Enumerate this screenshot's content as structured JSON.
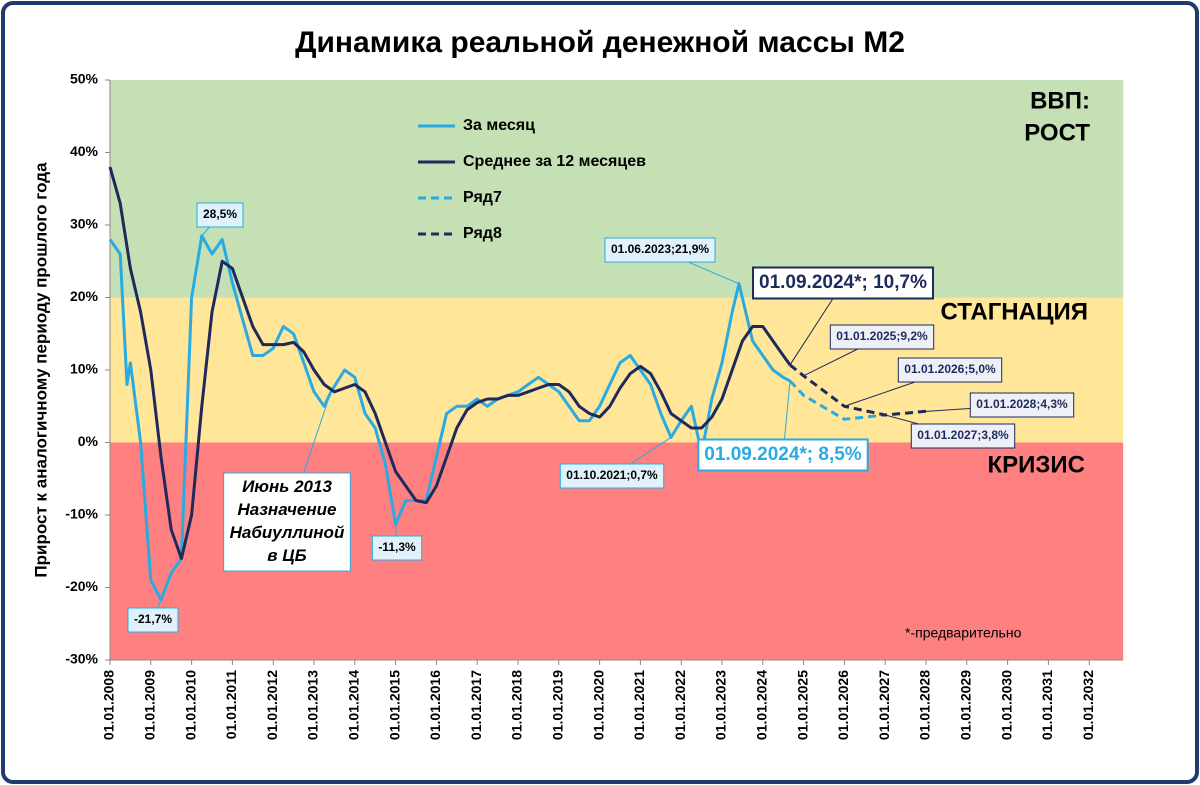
{
  "chart_data": {
    "type": "line",
    "title": "Динамика реальной денежной массы М2",
    "y_axis_label": "Прирост к аналогичному периоду прошлого года",
    "xlim": [
      "01.01.2008",
      "01.11.2032"
    ],
    "xticks": [
      "01.01.2008",
      "01.01.2009",
      "01.01.2010",
      "01.01.2011",
      "01.01.2012",
      "01.01.2013",
      "01.01.2014",
      "01.01.2015",
      "01.01.2016",
      "01.01.2017",
      "01.01.2018",
      "01.01.2019",
      "01.01.2020",
      "01.01.2021",
      "01.01.2022",
      "01.01.2023",
      "01.01.2024",
      "01.01.2025",
      "01.01.2026",
      "01.01.2027",
      "01.01.2028",
      "01.01.2029",
      "01.01.2030",
      "01.01.2031",
      "01.01.2032"
    ],
    "ylim": [
      -30,
      50
    ],
    "yticks": [
      {
        "value": -30,
        "label": "-30%"
      },
      {
        "value": -20,
        "label": "-20%"
      },
      {
        "value": -10,
        "label": "-10%"
      },
      {
        "value": 0,
        "label": "0%"
      },
      {
        "value": 10,
        "label": "10%"
      },
      {
        "value": 20,
        "label": "20%"
      },
      {
        "value": 30,
        "label": "30%"
      },
      {
        "value": 40,
        "label": "40%"
      },
      {
        "value": 50,
        "label": "50%"
      }
    ],
    "bands": [
      {
        "from": 20,
        "to": 50,
        "color": "#c5e0b4"
      },
      {
        "from": 0,
        "to": 20,
        "color": "#ffe699"
      },
      {
        "from": -30,
        "to": 0,
        "color": "#ff8080"
      }
    ],
    "zone_labels": [
      "ВВП:",
      "РОСТ",
      "СТАГНАЦИЯ",
      "КРИЗИС"
    ],
    "series": [
      {
        "name": "За месяц",
        "color": "#29abe2",
        "dash": false,
        "x": [
          "01.01.2008",
          "01.04.2008",
          "01.06.2008",
          "01.07.2008",
          "01.10.2008",
          "01.01.2009",
          "01.04.2009",
          "01.07.2009",
          "01.10.2009",
          "01.01.2010",
          "01.04.2010",
          "01.07.2010",
          "01.10.2010",
          "01.01.2011",
          "01.04.2011",
          "01.07.2011",
          "01.10.2011",
          "01.01.2012",
          "01.04.2012",
          "01.07.2012",
          "01.10.2012",
          "01.01.2013",
          "01.04.2013",
          "01.06.2013",
          "01.10.2013",
          "01.01.2014",
          "01.04.2014",
          "01.07.2014",
          "01.10.2014",
          "01.01.2015",
          "01.04.2015",
          "01.07.2015",
          "01.10.2015",
          "01.01.2016",
          "01.04.2016",
          "01.07.2016",
          "01.10.2016",
          "01.01.2017",
          "01.04.2017",
          "01.07.2017",
          "01.10.2017",
          "01.01.2018",
          "01.04.2018",
          "01.07.2018",
          "01.10.2018",
          "01.01.2019",
          "01.04.2019",
          "01.07.2019",
          "01.10.2019",
          "01.01.2020",
          "01.04.2020",
          "01.07.2020",
          "01.10.2020",
          "01.01.2021",
          "01.04.2021",
          "01.07.2021",
          "01.10.2021",
          "01.01.2022",
          "01.04.2022",
          "01.07.2022",
          "01.10.2022",
          "01.01.2023",
          "01.04.2023",
          "01.06.2023",
          "01.10.2023",
          "01.01.2024",
          "01.04.2024",
          "01.07.2024",
          "01.09.2024"
        ],
        "values": [
          28,
          26,
          8,
          11,
          0,
          -19,
          -21.7,
          -18,
          -16,
          20,
          28.5,
          26,
          28,
          22,
          17,
          12,
          12,
          13,
          16,
          15,
          11,
          7,
          5,
          7,
          10,
          9,
          4,
          2,
          -3,
          -11.3,
          -8,
          -8,
          -8,
          -2,
          4,
          5,
          5,
          6,
          5,
          6,
          6.5,
          7,
          8,
          9,
          8,
          7,
          5,
          3,
          3,
          5,
          8,
          11,
          12,
          10,
          8,
          4,
          0.7,
          3,
          5,
          -1.5,
          6,
          11,
          18,
          21.9,
          14,
          12,
          10,
          9,
          8.5
        ]
      },
      {
        "name": "Среднее за 12 месяцев",
        "color": "#1f2a5c",
        "dash": false,
        "x": [
          "01.01.2008",
          "01.04.2008",
          "01.07.2008",
          "01.10.2008",
          "01.01.2009",
          "01.04.2009",
          "01.07.2009",
          "01.10.2009",
          "01.01.2010",
          "01.04.2010",
          "01.07.2010",
          "01.10.2010",
          "01.01.2011",
          "01.04.2011",
          "01.07.2011",
          "01.10.2011",
          "01.01.2012",
          "01.04.2012",
          "01.07.2012",
          "01.10.2012",
          "01.01.2013",
          "01.04.2013",
          "01.07.2013",
          "01.10.2013",
          "01.01.2014",
          "01.04.2014",
          "01.07.2014",
          "01.10.2014",
          "01.01.2015",
          "01.04.2015",
          "01.07.2015",
          "01.10.2015",
          "01.01.2016",
          "01.04.2016",
          "01.07.2016",
          "01.10.2016",
          "01.01.2017",
          "01.04.2017",
          "01.07.2017",
          "01.10.2017",
          "01.01.2018",
          "01.04.2018",
          "01.07.2018",
          "01.10.2018",
          "01.01.2019",
          "01.04.2019",
          "01.07.2019",
          "01.10.2019",
          "01.01.2020",
          "01.04.2020",
          "01.07.2020",
          "01.10.2020",
          "01.01.2021",
          "01.04.2021",
          "01.07.2021",
          "01.10.2021",
          "01.01.2022",
          "01.04.2022",
          "01.07.2022",
          "01.10.2022",
          "01.01.2023",
          "01.04.2023",
          "01.07.2023",
          "01.10.2023",
          "01.01.2024",
          "01.04.2024",
          "01.07.2024",
          "01.09.2024"
        ],
        "values": [
          38,
          33,
          24,
          18,
          10,
          -2,
          -12,
          -16,
          -10,
          5,
          18,
          25,
          24,
          20,
          16,
          13.5,
          13.5,
          13.5,
          13.8,
          12.5,
          10,
          8,
          7,
          7.5,
          8,
          7,
          4,
          0,
          -4,
          -6,
          -8,
          -8.3,
          -6,
          -2,
          2,
          4.5,
          5.5,
          6,
          6,
          6.5,
          6.5,
          7,
          7.5,
          8,
          8,
          7,
          5,
          4,
          3.5,
          5,
          7.5,
          9.5,
          10.5,
          9.5,
          7,
          4,
          3,
          2,
          2,
          3.5,
          6,
          10,
          14,
          16,
          16,
          14,
          12,
          10.7
        ]
      },
      {
        "name": "Ряд7",
        "color": "#29abe2",
        "dash": true,
        "x": [
          "01.09.2024",
          "01.01.2025",
          "01.01.2026",
          "01.01.2027"
        ],
        "values": [
          8.5,
          6.5,
          3.2,
          3.8
        ]
      },
      {
        "name": "Ряд8",
        "color": "#1f2a5c",
        "dash": true,
        "x": [
          "01.09.2024",
          "01.01.2025",
          "01.01.2026",
          "01.01.2027",
          "01.01.2028"
        ],
        "values": [
          10.7,
          9.2,
          5.0,
          3.8,
          4.3
        ]
      }
    ],
    "annotations": [
      {
        "text": [
          "28,5%"
        ],
        "x": "01.04.2010",
        "y": 28.5,
        "color": "#29abe2"
      },
      {
        "text": [
          "-21,7%"
        ],
        "x": "01.04.2009",
        "y": -21.7,
        "color": "#29abe2"
      },
      {
        "text": [
          "-11,3%"
        ],
        "x": "01.01.2015",
        "y": -11.3,
        "color": "#29abe2"
      },
      {
        "text": [
          "Июнь 2013",
          "Назначение",
          "Набиуллиной",
          "в ЦБ"
        ],
        "x": "01.06.2013",
        "y": 7,
        "color": "#29abe2"
      },
      {
        "text": [
          "01.06.2023;21,9%"
        ],
        "x": "01.06.2023",
        "y": 21.9,
        "color": "#29abe2"
      },
      {
        "text": [
          "01.10.2021;0,7%"
        ],
        "x": "01.10.2021",
        "y": 0.7,
        "color": "#29abe2"
      },
      {
        "text": [
          "01.09.2024*; 10,7%"
        ],
        "x": "01.09.2024",
        "y": 10.7,
        "color": "#1f2a5c"
      },
      {
        "text": [
          "01.09.2024*; 8,5%"
        ],
        "x": "01.09.2024",
        "y": 8.5,
        "color": "#29abe2"
      },
      {
        "text": [
          "01.01.2025;9,2%"
        ],
        "x": "01.01.2025",
        "y": 9.2,
        "color": "#1f2a5c"
      },
      {
        "text": [
          "01.01.2026;5,0%"
        ],
        "x": "01.01.2026",
        "y": 5.0,
        "color": "#1f2a5c"
      },
      {
        "text": [
          "01.01.2028;4,3%"
        ],
        "x": "01.01.2028",
        "y": 4.3,
        "color": "#1f2a5c"
      },
      {
        "text": [
          "01.01.2027;3,8%"
        ],
        "x": "01.01.2027",
        "y": 3.8,
        "color": "#1f2a5c"
      }
    ],
    "note": "*-предварительно"
  }
}
